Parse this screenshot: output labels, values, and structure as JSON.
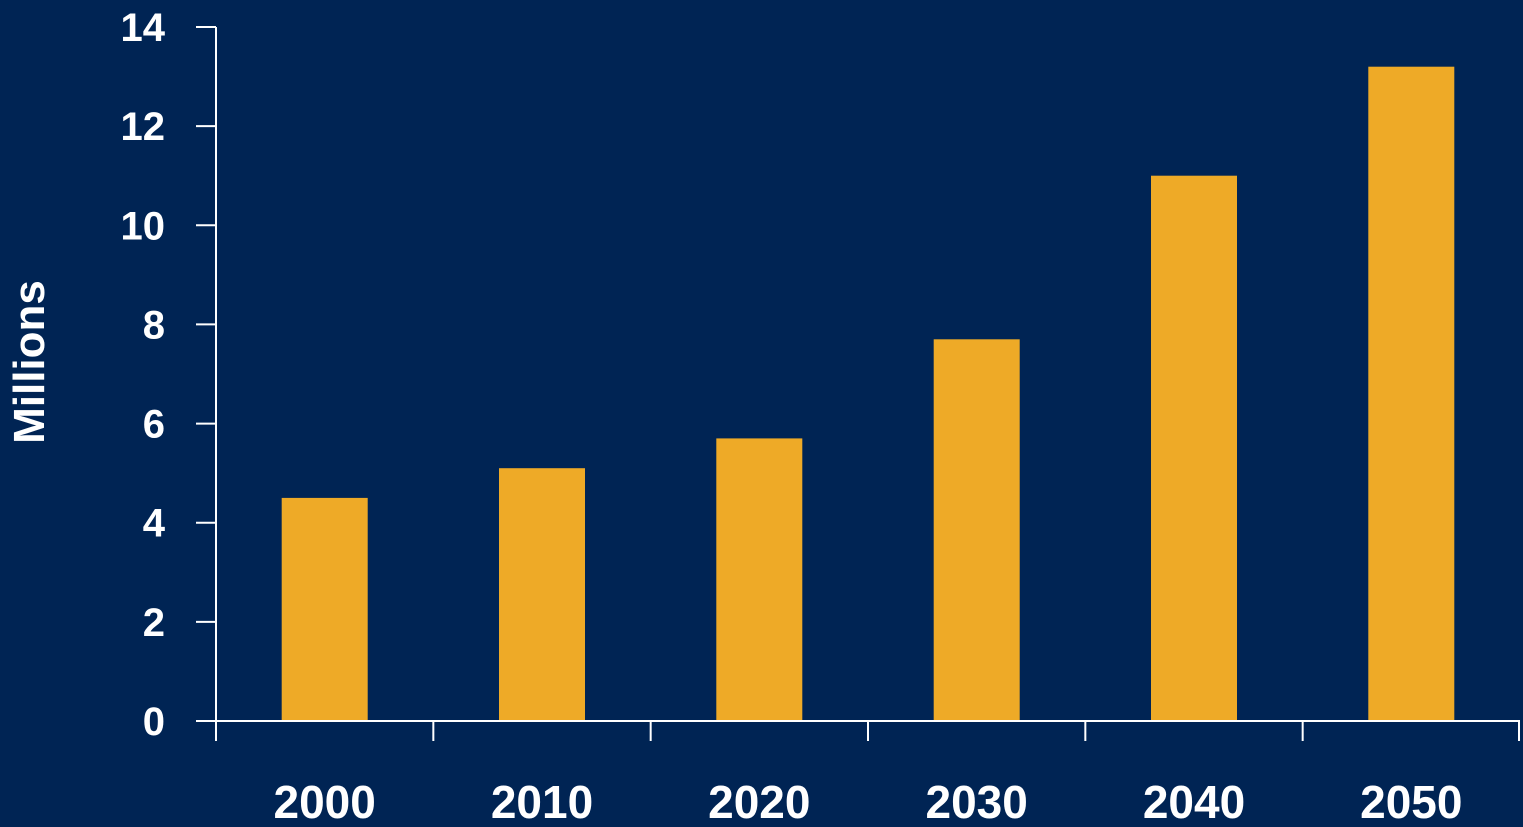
{
  "chart_data": {
    "type": "bar",
    "title": "",
    "xlabel": "",
    "ylabel": "Millions",
    "categories": [
      "2000",
      "2010",
      "2020",
      "2030",
      "2040",
      "2050"
    ],
    "values": [
      4.5,
      5.1,
      5.7,
      7.7,
      11.0,
      13.2
    ],
    "ylim": [
      0,
      14
    ],
    "yticks": [
      "0",
      "2",
      "4",
      "6",
      "8",
      "10",
      "12",
      "14"
    ],
    "grid": false,
    "legend": "none",
    "colors": {
      "background": "#002454",
      "bar": "#EEAA27",
      "axis": "#ffffff",
      "text": "#ffffff"
    }
  }
}
